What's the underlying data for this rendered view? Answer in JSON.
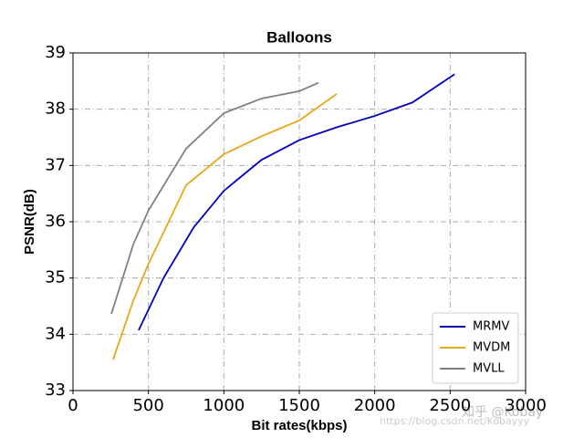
{
  "chart_data": {
    "type": "line",
    "title": "Balloons",
    "x_label": "Bit rates(kbps)",
    "y_label": "PSNR(dB)",
    "xlim": [
      0,
      3000
    ],
    "xticks": [
      0,
      500,
      1000,
      1500,
      2000,
      2500,
      3000
    ],
    "ylim": [
      33,
      39
    ],
    "yticks": [
      33,
      34,
      35,
      36,
      37,
      38,
      39
    ],
    "grid": true,
    "legend": "lower right",
    "series": [
      {
        "name": "MRMV",
        "color": "#0000bb",
        "x": [
          435,
          600,
          800,
          1000,
          1250,
          1500,
          1750,
          2000,
          2250,
          2529
        ],
        "values": [
          34.07,
          35.0,
          35.9,
          36.55,
          37.1,
          37.45,
          37.68,
          37.88,
          38.12,
          38.62
        ]
      },
      {
        "name": "MVDM",
        "color": "#e6a817",
        "x": [
          266,
          400,
          500,
          750,
          1000,
          1250,
          1500,
          1748
        ],
        "values": [
          33.55,
          34.6,
          35.25,
          36.65,
          37.2,
          37.52,
          37.8,
          38.27
        ]
      },
      {
        "name": "MVLL",
        "color": "#808080",
        "x": [
          254,
          400,
          500,
          750,
          1000,
          1250,
          1500,
          1627
        ],
        "values": [
          34.36,
          35.6,
          36.2,
          37.3,
          37.93,
          38.19,
          38.32,
          38.47
        ]
      }
    ],
    "watermark": [
      "知乎 @Kobay",
      "https://blog.csdn.net/Kobayyy"
    ]
  }
}
